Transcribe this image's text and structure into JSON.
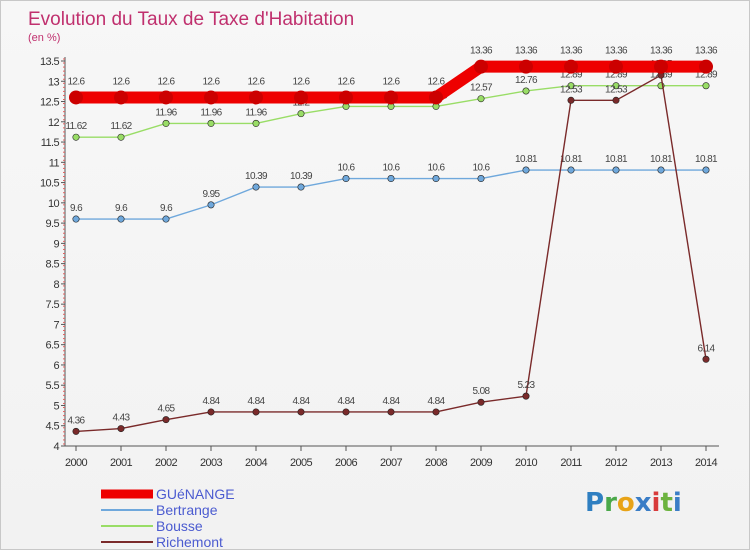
{
  "chart_data": {
    "type": "line",
    "title": "Evolution du Taux de Taxe d'Habitation",
    "subtitle": "(en %)",
    "xlabel": "",
    "ylabel": "",
    "ylim": [
      4,
      13.5
    ],
    "yticks": [
      "4",
      "4.5",
      "5",
      "5.5",
      "6",
      "6.5",
      "7",
      "7.5",
      "8",
      "8.5",
      "9",
      "9.5",
      "10",
      "10.5",
      "11",
      "11.5",
      "12",
      "12.5",
      "13",
      "13.5"
    ],
    "categories": [
      "2000",
      "2001",
      "2002",
      "2003",
      "2004",
      "2005",
      "2006",
      "2007",
      "2008",
      "2009",
      "2010",
      "2011",
      "2012",
      "2013",
      "2014"
    ],
    "grid": false,
    "legend_position": "bottom-left",
    "series": [
      {
        "name": "GUéNANGE",
        "color": "#ee0000",
        "values": [
          12.6,
          12.6,
          12.6,
          12.6,
          12.6,
          12.6,
          12.6,
          12.6,
          12.6,
          13.36,
          13.36,
          13.36,
          13.36,
          13.36,
          13.36
        ],
        "labels": [
          "12.6",
          "12.6",
          "12.6",
          "12.6",
          "12.6",
          "12.6",
          "12.6",
          "12.6",
          "12.6",
          "13.36",
          "13.36",
          "13.36",
          "13.36",
          "13.36",
          "13.36"
        ]
      },
      {
        "name": "Bertrange",
        "color": "#6fa8dc",
        "values": [
          9.6,
          9.6,
          9.6,
          9.95,
          10.39,
          10.39,
          10.6,
          10.6,
          10.6,
          10.6,
          10.81,
          10.81,
          10.81,
          10.81,
          10.81
        ],
        "labels": [
          "9.6",
          "9.6",
          "9.6",
          "9.95",
          "10.39",
          "10.39",
          "10.6",
          "10.6",
          "10.6",
          "10.6",
          "10.81",
          "10.81",
          "10.81",
          "10.81",
          "10.81"
        ]
      },
      {
        "name": "Bousse",
        "color": "#99dd66",
        "values": [
          11.62,
          11.62,
          11.96,
          11.96,
          11.96,
          12.2,
          12.38,
          12.38,
          12.38,
          12.57,
          12.76,
          12.89,
          12.89,
          12.89,
          12.89
        ],
        "labels": [
          "11.62",
          "11.62",
          "11.96",
          "11.96",
          "11.96",
          "12.2",
          "12.38",
          "12.38",
          "12.38",
          "12.57",
          "12.76",
          "12.89",
          "12.89",
          "12.89",
          "12.89"
        ]
      },
      {
        "name": "Richemont",
        "color": "#7a2a2a",
        "values": [
          4.36,
          4.43,
          4.65,
          4.84,
          4.84,
          4.84,
          4.84,
          4.84,
          4.84,
          5.08,
          5.23,
          12.53,
          12.53,
          13.15,
          6.14
        ],
        "labels": [
          "4.36",
          "4.43",
          "4.65",
          "4.84",
          "4.84",
          "4.84",
          "4.84",
          "4.84",
          "4.84",
          "5.08",
          "5.23",
          "12.53",
          "12.53",
          "13.15",
          "6.14"
        ]
      }
    ]
  },
  "brand": {
    "letters": [
      "P",
      "r",
      "o",
      "x",
      "i",
      "t",
      "i"
    ],
    "colors": [
      "#2f7fc1",
      "#4aa84a",
      "#e8a317",
      "#3a7dc6",
      "#d83b3b",
      "#6cb33f",
      "#3a7dc6"
    ]
  }
}
